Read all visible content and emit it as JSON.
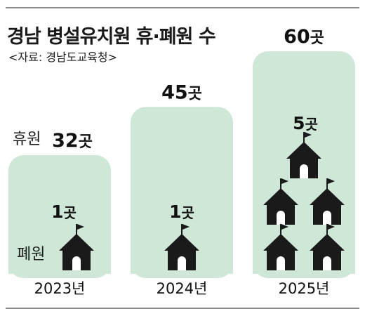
{
  "title": "경남 병설유치원 휴·폐원 수",
  "source": "<자료: 경남도교육청>",
  "labels": {
    "suspended": "휴원",
    "closed": "폐원",
    "unit": "곳"
  },
  "chart_data": {
    "type": "bar",
    "categories": [
      "2023년",
      "2024년",
      "2025년"
    ],
    "series": [
      {
        "name": "휴원",
        "values": [
          32,
          45,
          60
        ]
      },
      {
        "name": "폐원",
        "values": [
          1,
          1,
          5
        ]
      }
    ],
    "value_labels": {
      "suspended": [
        "32곳",
        "45곳",
        "60곳"
      ],
      "closed": [
        "1곳",
        "1곳",
        "5곳"
      ]
    },
    "ylim": [
      0,
      60
    ],
    "colors": {
      "bar": "#cfe7d7",
      "icon": "#1a1a1a"
    },
    "icon": "school-house-icon"
  }
}
